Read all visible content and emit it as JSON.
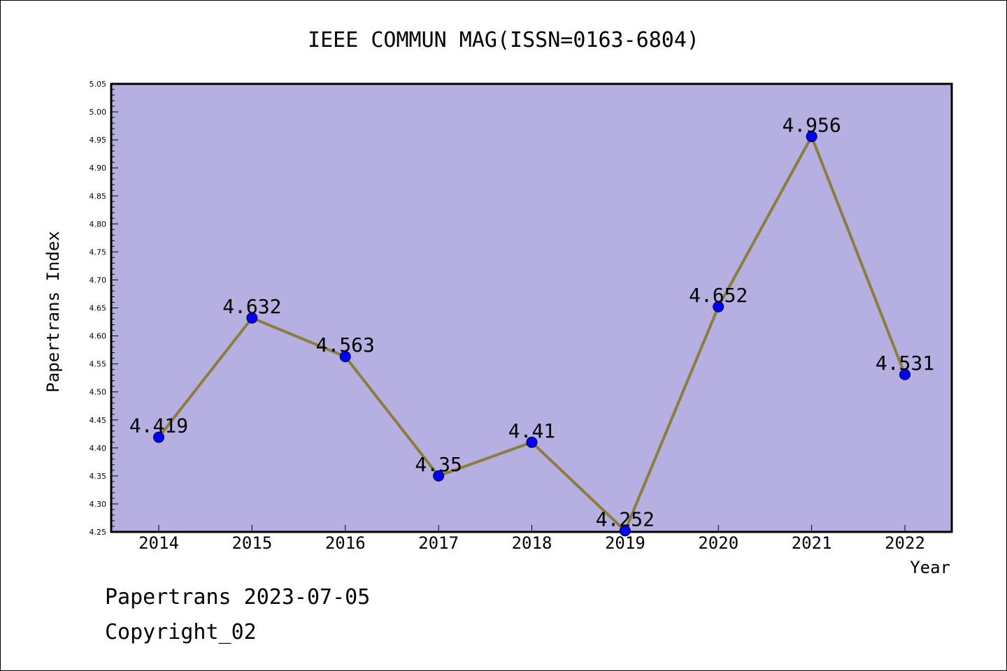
{
  "chart_data": {
    "type": "line",
    "title": "IEEE COMMUN MAG(ISSN=0163-6804)",
    "xlabel": "Year",
    "ylabel": "Papertrans Index",
    "x": [
      "2014",
      "2015",
      "2016",
      "2017",
      "2018",
      "2019",
      "2020",
      "2021",
      "2022"
    ],
    "series": [
      {
        "values": [
          4.419,
          4.632,
          4.563,
          4.35,
          4.41,
          4.252,
          4.652,
          4.956,
          4.531
        ],
        "data_labels": [
          "4.419",
          "4.632",
          "4.563",
          "4.35",
          "4.41",
          "4.252",
          "4.652",
          "4.956",
          "4.531"
        ]
      }
    ],
    "ylim": [
      4.25,
      5.05
    ],
    "yticks": [
      "4.25",
      "4.30",
      "4.35",
      "4.40",
      "4.45",
      "4.50",
      "4.55",
      "4.60",
      "4.65",
      "4.70",
      "4.75",
      "4.80",
      "4.85",
      "4.90",
      "4.95",
      "5.00",
      "5.05"
    ],
    "grid": false,
    "legend": "none"
  },
  "footer": {
    "line1": "Papertrans 2023-07-05",
    "line2": "Copyright_02"
  },
  "colors": {
    "plot_background": "#b5afe2",
    "line": "#8c7d3c",
    "marker": "#0000ff",
    "axis": "#000000"
  }
}
